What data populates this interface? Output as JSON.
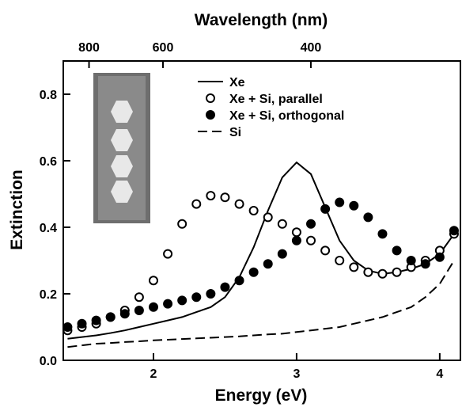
{
  "chart_data": {
    "type": "line",
    "xlabel": "Energy (eV)",
    "ylabel": "Extinction",
    "x2label": "Wavelength (nm)",
    "xlim": [
      1.37,
      4.15
    ],
    "ylim": [
      0,
      0.9
    ],
    "xticks": [
      2,
      3,
      4
    ],
    "yticks": [
      {
        "value": 0,
        "label": "0.0"
      },
      0.2,
      0.4,
      0.6,
      0.8
    ],
    "x2ticks": [
      800,
      600,
      400
    ],
    "x": [
      1.4,
      1.5,
      1.6,
      1.7,
      1.8,
      1.9,
      2.0,
      2.1,
      2.2,
      2.3,
      2.4,
      2.5,
      2.6,
      2.7,
      2.8,
      2.9,
      3.0,
      3.1,
      3.2,
      3.3,
      3.4,
      3.5,
      3.6,
      3.7,
      3.8,
      3.9,
      4.0,
      4.1
    ],
    "series": [
      {
        "name": "Xe",
        "style": "line",
        "color": "#000000",
        "values": [
          0.065,
          0.07,
          0.075,
          0.082,
          0.09,
          0.1,
          0.11,
          0.12,
          0.13,
          0.145,
          0.16,
          0.19,
          0.25,
          0.34,
          0.45,
          0.55,
          0.595,
          0.56,
          0.46,
          0.36,
          0.3,
          0.27,
          0.26,
          0.265,
          0.275,
          0.29,
          0.32,
          0.38
        ]
      },
      {
        "name": "Xe + Si, parallel",
        "style": "open-circle",
        "color": "#000000",
        "values": [
          0.09,
          0.1,
          0.11,
          0.13,
          0.15,
          0.19,
          0.24,
          0.32,
          0.41,
          0.47,
          0.495,
          0.49,
          0.47,
          0.45,
          0.43,
          0.41,
          0.385,
          0.36,
          0.33,
          0.3,
          0.28,
          0.265,
          0.26,
          0.265,
          0.28,
          0.3,
          0.33,
          0.38
        ]
      },
      {
        "name": "Xe + Si, orthogonal",
        "style": "filled-circle",
        "color": "#000000",
        "values": [
          0.1,
          0.11,
          0.12,
          0.13,
          0.14,
          0.15,
          0.16,
          0.17,
          0.18,
          0.19,
          0.2,
          0.22,
          0.24,
          0.265,
          0.29,
          0.32,
          0.36,
          0.41,
          0.455,
          0.475,
          0.465,
          0.43,
          0.38,
          0.33,
          0.3,
          0.29,
          0.31,
          0.39
        ]
      },
      {
        "name": "Si",
        "style": "dashed",
        "color": "#000000",
        "values": [
          0.04,
          0.045,
          0.05,
          0.052,
          0.055,
          0.057,
          0.06,
          0.062,
          0.064,
          0.066,
          0.068,
          0.07,
          0.072,
          0.075,
          0.078,
          0.08,
          0.085,
          0.09,
          0.095,
          0.1,
          0.11,
          0.12,
          0.13,
          0.145,
          0.16,
          0.19,
          0.23,
          0.3
        ]
      }
    ]
  }
}
